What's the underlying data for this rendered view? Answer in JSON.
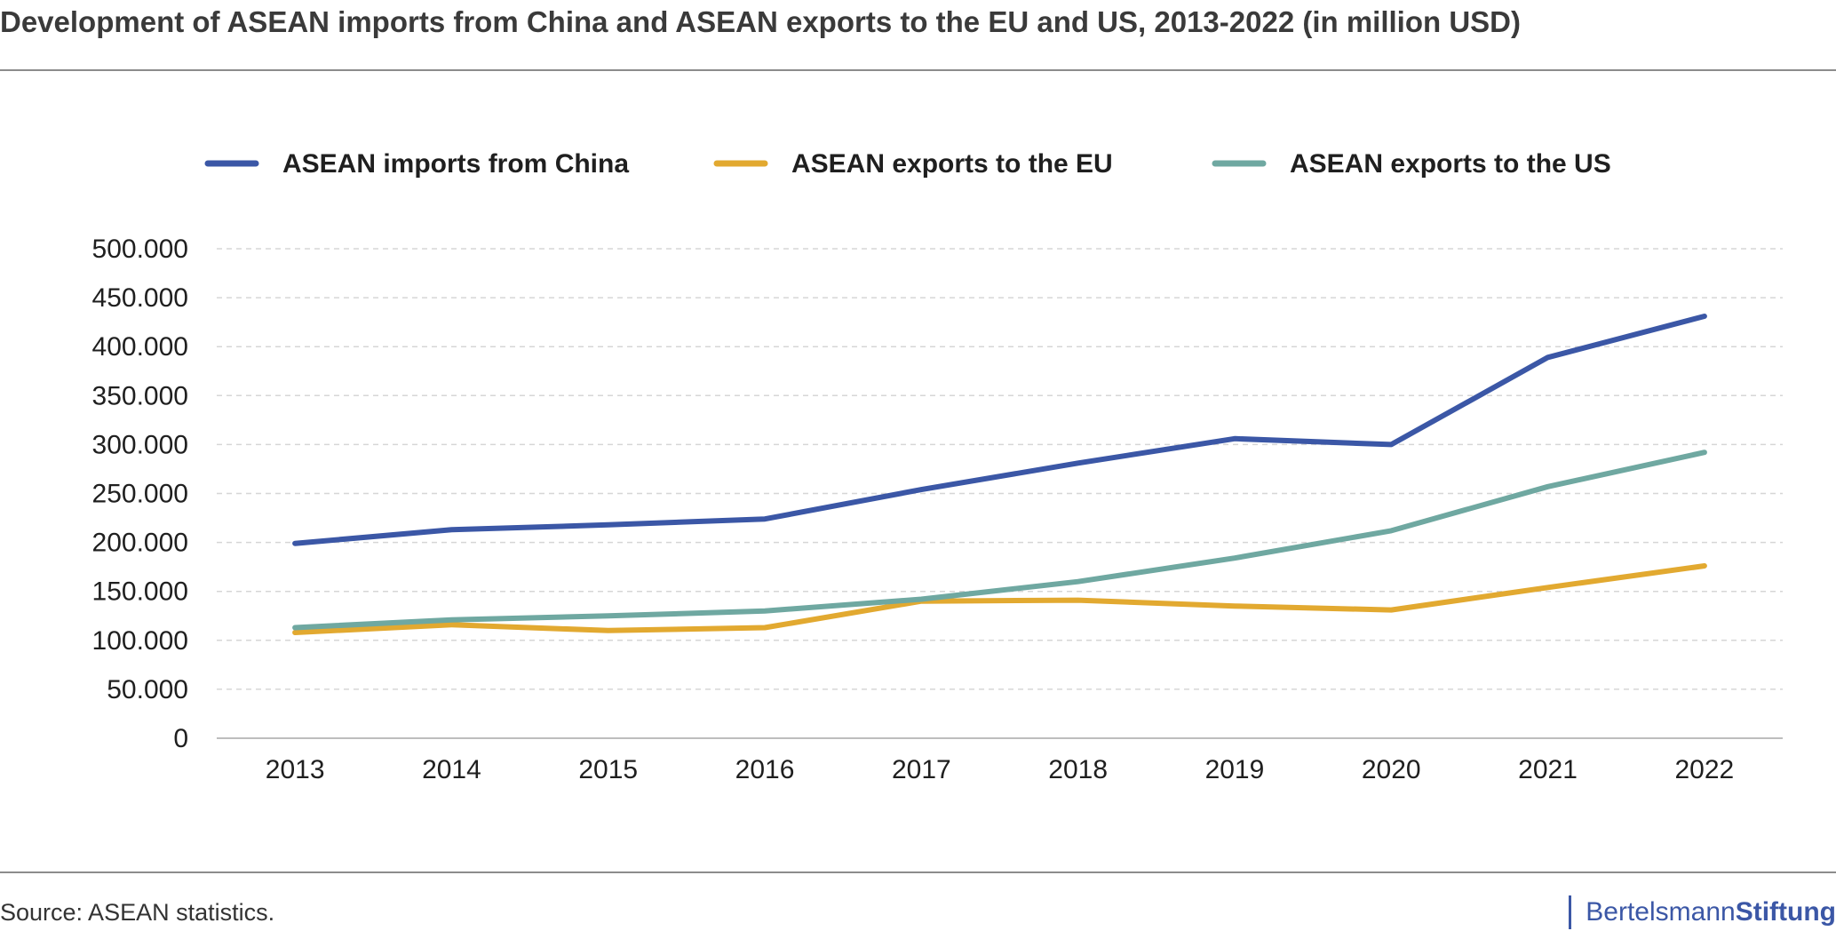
{
  "title": "Development of ASEAN imports from China and ASEAN exports to the EU and US, 2013-2022 (in million USD)",
  "source": "Source: ASEAN statistics.",
  "brand": {
    "part1": "Bertelsmann",
    "part2": "Stiftung",
    "color": "#3b57a6"
  },
  "chart_data": {
    "type": "line",
    "x": [
      "2013",
      "2014",
      "2015",
      "2016",
      "2017",
      "2018",
      "2019",
      "2020",
      "2021",
      "2022"
    ],
    "y_ticks": [
      "0",
      "50.000",
      "100.000",
      "150.000",
      "200.000",
      "250.000",
      "300.000",
      "350.000",
      "400.000",
      "450.000",
      "500.000"
    ],
    "ylim": [
      0,
      500000
    ],
    "grid": "horizontal dashed",
    "legend_position": "top",
    "series": [
      {
        "name": "ASEAN imports from China",
        "color": "#3b57a6",
        "values": [
          199000,
          213000,
          218000,
          224000,
          254000,
          281000,
          306000,
          300000,
          389000,
          431000
        ]
      },
      {
        "name": "ASEAN exports to the EU",
        "color": "#e2a930",
        "values": [
          108000,
          116000,
          110000,
          113000,
          140000,
          141000,
          135000,
          131000,
          154000,
          176000
        ]
      },
      {
        "name": "ASEAN exports to the US",
        "color": "#6fa8a1",
        "values": [
          113000,
          121000,
          125000,
          130000,
          142000,
          160000,
          184000,
          212000,
          257000,
          292000
        ]
      }
    ]
  }
}
